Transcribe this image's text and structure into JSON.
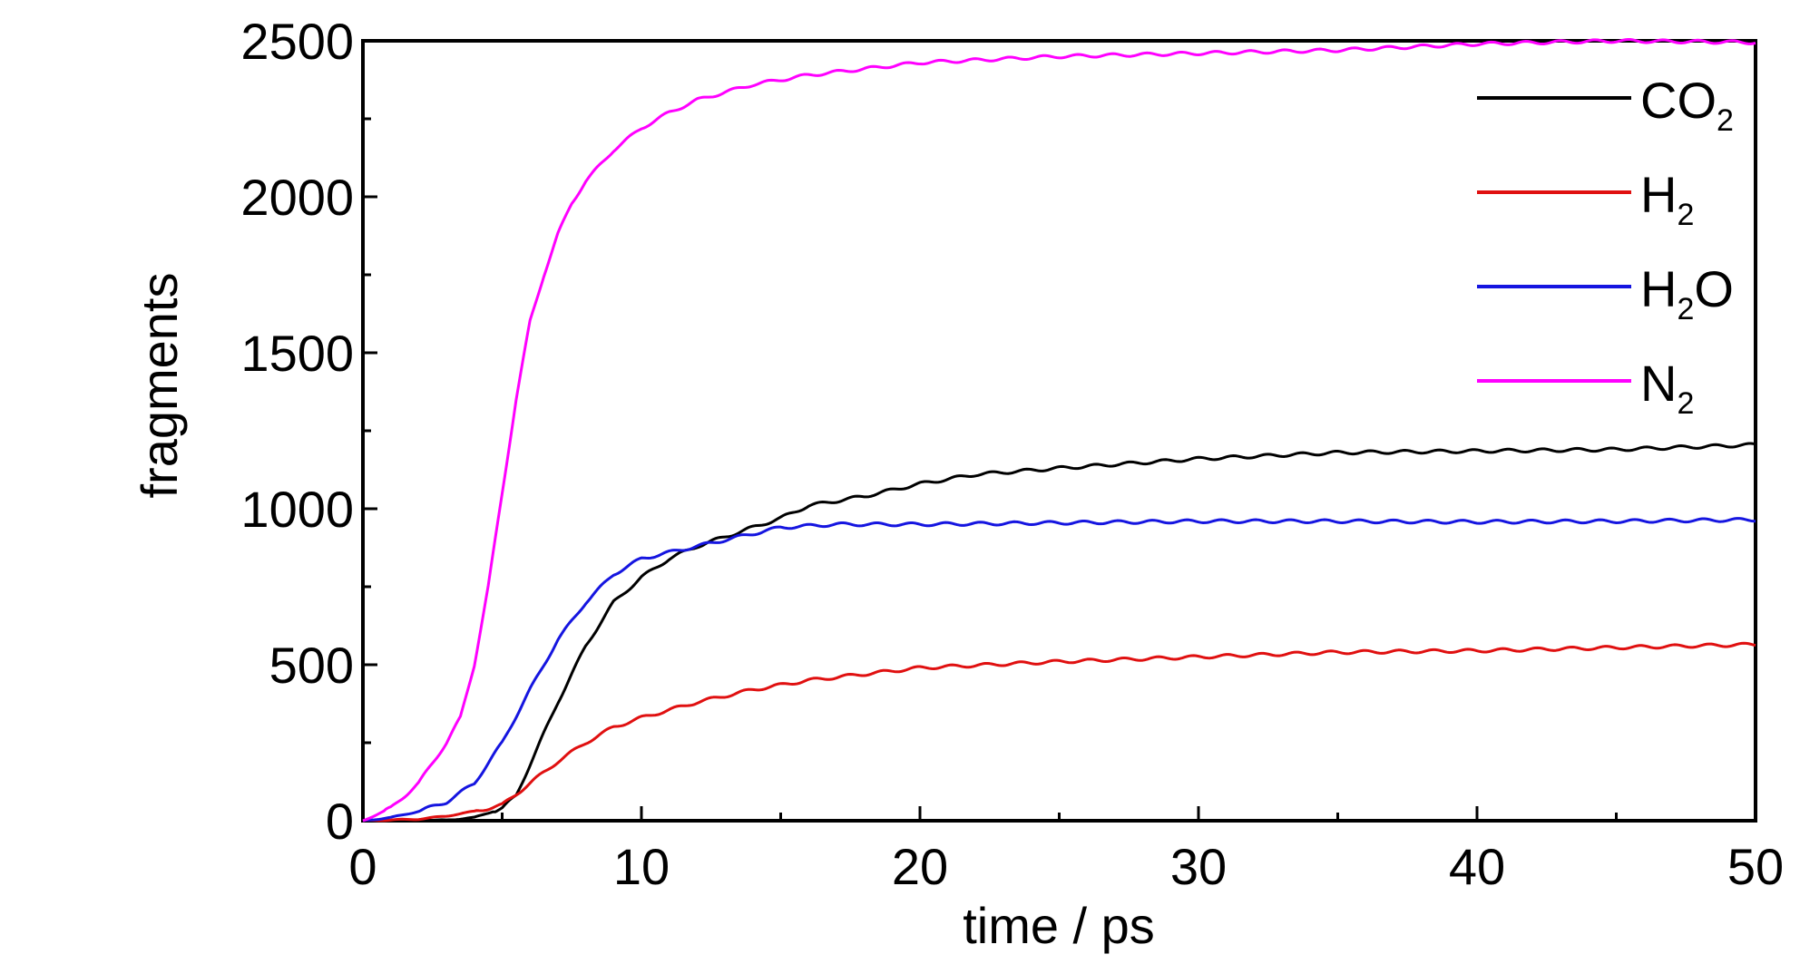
{
  "chart_data": {
    "type": "line",
    "xlabel": "time / ps",
    "ylabel": "fragments",
    "xlim": [
      0,
      50
    ],
    "ylim": [
      0,
      2500
    ],
    "xticks": [
      0,
      10,
      20,
      30,
      40,
      50
    ],
    "yticks": [
      0,
      500,
      1000,
      1500,
      2000,
      2500
    ],
    "grid": false,
    "legend_position": "top-right",
    "series": [
      {
        "name": "CO2",
        "label_main": "CO",
        "label_sub": "2",
        "label_tail": "",
        "color": "#000000",
        "x": [
          0,
          2,
          3,
          4,
          5,
          5.5,
          6,
          7,
          8,
          9,
          10,
          11,
          12,
          13,
          14,
          15,
          16,
          18,
          20,
          22,
          25,
          30,
          35,
          40,
          45,
          50
        ],
        "y": [
          0,
          0,
          2,
          10,
          40,
          80,
          180,
          380,
          560,
          700,
          780,
          840,
          880,
          910,
          940,
          970,
          1010,
          1040,
          1080,
          1110,
          1130,
          1160,
          1180,
          1185,
          1190,
          1205
        ]
      },
      {
        "name": "H2",
        "label_main": "H",
        "label_sub": "2",
        "label_tail": "",
        "color": "#e01010",
        "x": [
          0,
          2,
          3,
          4,
          5,
          6,
          7,
          8,
          9,
          10,
          12,
          14,
          16,
          18,
          20,
          25,
          30,
          35,
          40,
          45,
          50
        ],
        "y": [
          0,
          5,
          15,
          30,
          50,
          120,
          190,
          250,
          300,
          330,
          380,
          420,
          450,
          470,
          490,
          510,
          525,
          540,
          545,
          555,
          565
        ]
      },
      {
        "name": "H2O",
        "label_main": "H",
        "label_sub": "2",
        "label_tail": "O",
        "color": "#1515e0",
        "x": [
          0,
          1,
          2,
          3,
          4,
          5,
          6,
          7,
          8,
          9,
          10,
          11,
          12,
          13,
          14,
          15,
          17,
          20,
          25,
          30,
          35,
          40,
          45,
          50
        ],
        "y": [
          0,
          10,
          30,
          60,
          120,
          250,
          420,
          580,
          700,
          790,
          840,
          860,
          880,
          900,
          920,
          940,
          950,
          950,
          955,
          960,
          960,
          958,
          960,
          965
        ]
      },
      {
        "name": "N2",
        "label_main": "N",
        "label_sub": "2",
        "label_tail": "",
        "color": "#ff00ff",
        "x": [
          0,
          1,
          2,
          3,
          3.5,
          4,
          4.5,
          5,
          5.5,
          6,
          6.5,
          7,
          7.5,
          8,
          9,
          10,
          11,
          12,
          14,
          16,
          18,
          20,
          25,
          30,
          35,
          40,
          45,
          50
        ],
        "y": [
          0,
          40,
          120,
          250,
          330,
          500,
          750,
          1050,
          1350,
          1600,
          1750,
          1880,
          1980,
          2050,
          2150,
          2220,
          2270,
          2310,
          2360,
          2390,
          2410,
          2430,
          2450,
          2460,
          2470,
          2490,
          2500,
          2495
        ]
      }
    ]
  }
}
